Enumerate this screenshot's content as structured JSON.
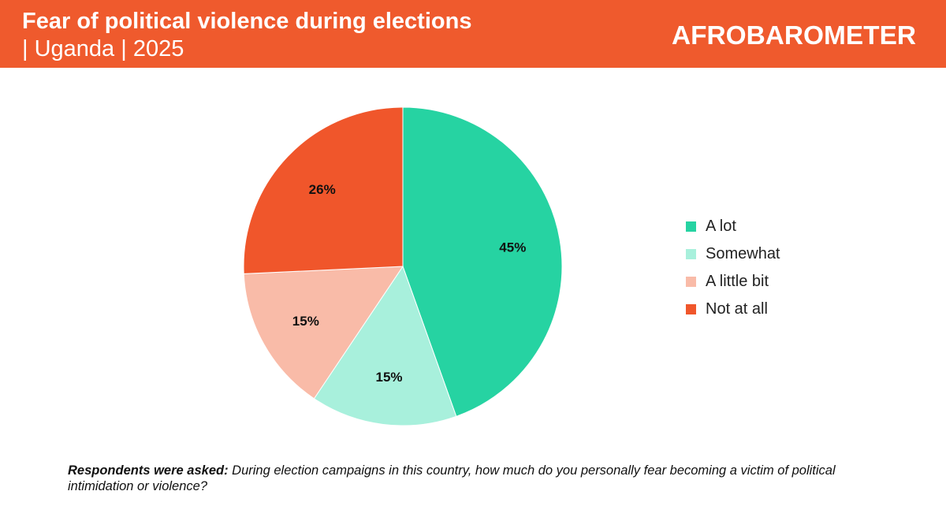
{
  "header": {
    "title": "Fear of political violence during elections",
    "subtitle": "| Uganda | 2025",
    "brand": "AFROBAROMETER",
    "bg_color": "#EF5A2D"
  },
  "chart_data": {
    "type": "pie",
    "title": "Fear of political violence during elections",
    "subtitle": "| Uganda | 2025",
    "labels": [
      "A lot",
      "Somewhat",
      "A little bit",
      "Not at all"
    ],
    "values": [
      45,
      15,
      15,
      26
    ],
    "data_labels": [
      "45%",
      "15%",
      "15%",
      "26%"
    ],
    "colors": [
      "#26D3A2",
      "#A8F0DC",
      "#F9BBA8",
      "#F0562B"
    ],
    "legend_position": "right",
    "start_angle": "12 o'clock, clockwise"
  },
  "note": {
    "lead": "Respondents were asked:",
    "text": " During election campaigns in this country, how much do you personally fear becoming a victim of political intimidation or violence?"
  }
}
